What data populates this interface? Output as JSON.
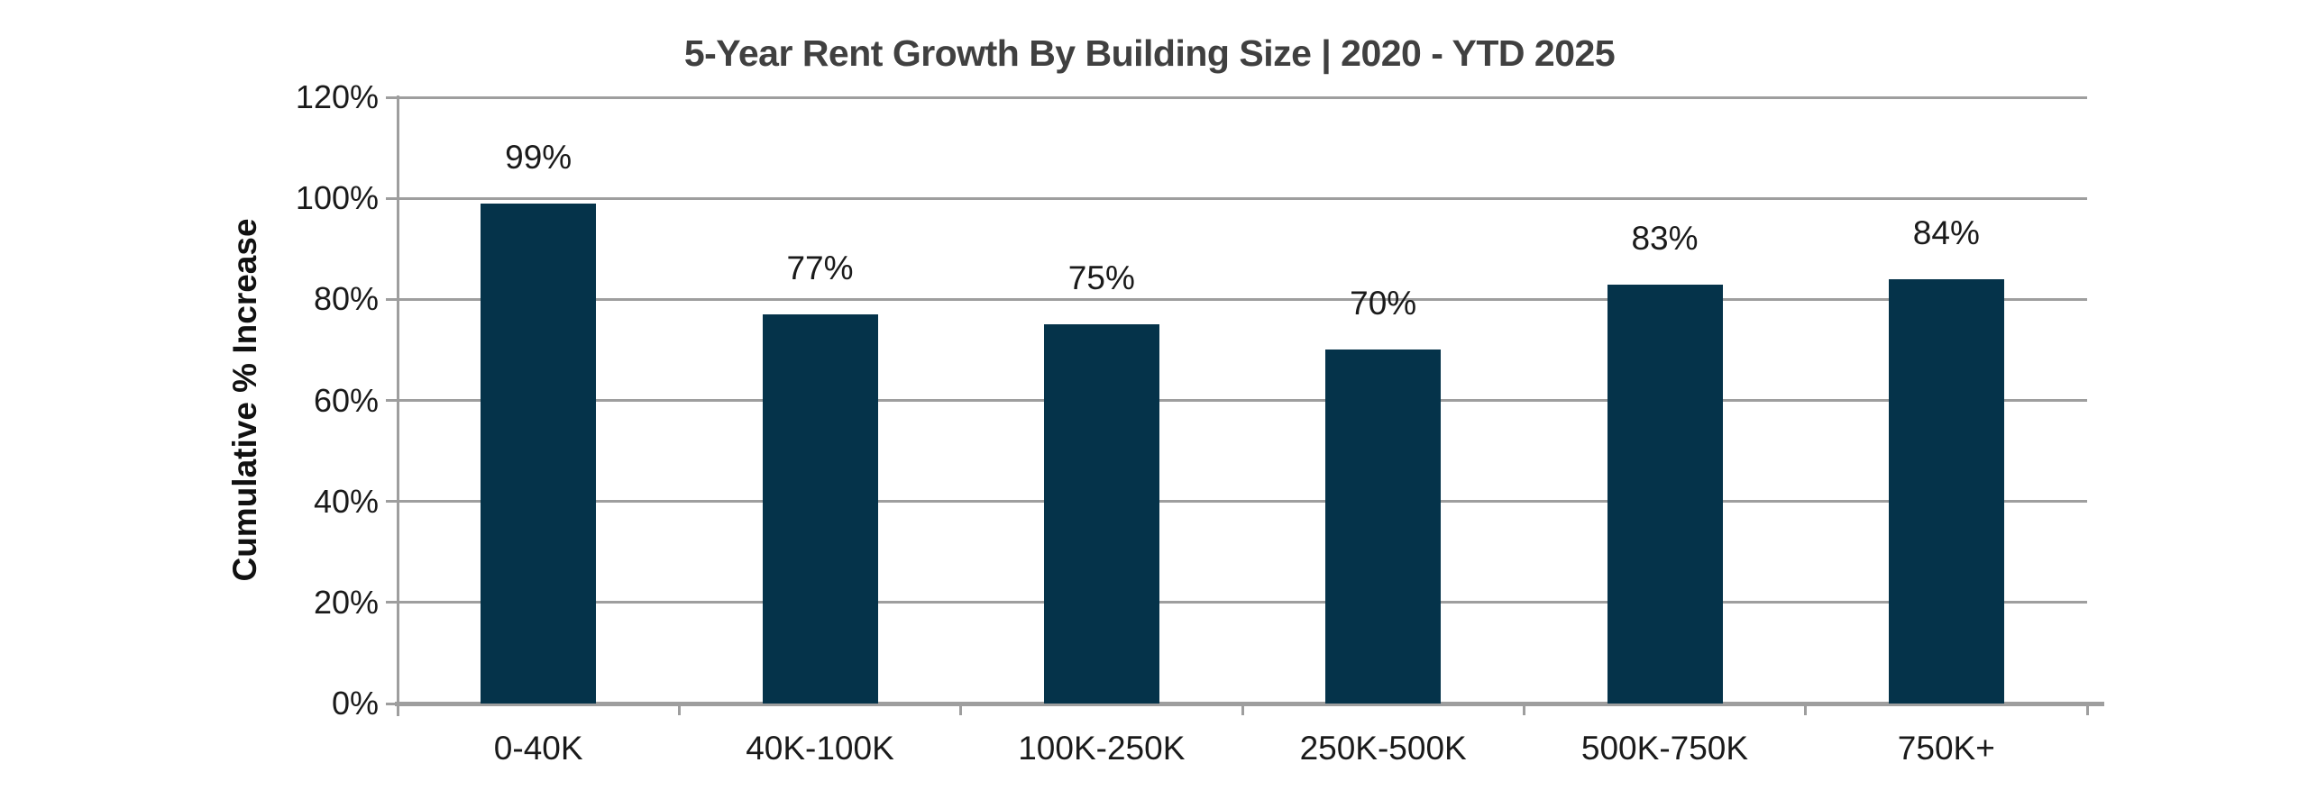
{
  "chart_data": {
    "type": "bar",
    "title": "5-Year Rent Growth By Building Size | 2020 - YTD 2025",
    "xlabel": "",
    "ylabel": "Cumulative % Increase",
    "categories": [
      "0-40K",
      "40K-100K",
      "100K-250K",
      "250K-500K",
      "500K-750K",
      "750K+"
    ],
    "values": [
      99,
      77,
      75,
      70,
      83,
      84
    ],
    "value_labels": [
      "99%",
      "77%",
      "75%",
      "70%",
      "83%",
      "84%"
    ],
    "ylim": [
      0,
      120
    ],
    "yticks": [
      0,
      20,
      40,
      60,
      80,
      100,
      120
    ],
    "ytick_labels": [
      "0%",
      "20%",
      "40%",
      "60%",
      "80%",
      "100%",
      "120%"
    ],
    "grid": "horizontal-only",
    "legend": "none",
    "colors": {
      "bar": "#05334a",
      "gridline": "#9e9e9e",
      "axis": "#9e9e9e",
      "title": "#404040",
      "label": "#1a1a1a"
    }
  }
}
